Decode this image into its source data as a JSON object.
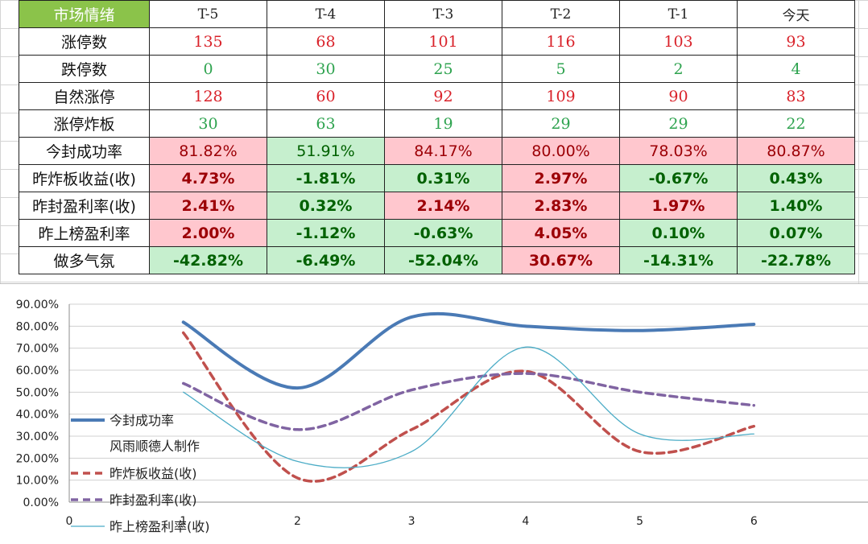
{
  "table": {
    "corner_label": "市场情绪",
    "columns": [
      "T-5",
      "T-4",
      "T-3",
      "T-2",
      "T-1",
      "今天"
    ],
    "rows": [
      {
        "label": "涨停数",
        "style": "num",
        "values": [
          "135",
          "68",
          "101",
          "116",
          "103",
          "93"
        ],
        "colors": [
          "red",
          "red",
          "red",
          "red",
          "red",
          "red"
        ]
      },
      {
        "label": "跌停数",
        "style": "num",
        "values": [
          "0",
          "30",
          "25",
          "5",
          "2",
          "4"
        ],
        "colors": [
          "green",
          "green",
          "green",
          "green",
          "green",
          "green"
        ]
      },
      {
        "label": "自然涨停",
        "style": "num",
        "values": [
          "128",
          "60",
          "92",
          "109",
          "90",
          "83"
        ],
        "colors": [
          "red",
          "red",
          "red",
          "red",
          "red",
          "red"
        ]
      },
      {
        "label": "涨停炸板",
        "style": "num",
        "values": [
          "30",
          "63",
          "19",
          "29",
          "29",
          "22"
        ],
        "colors": [
          "green",
          "green",
          "green",
          "green",
          "green",
          "green"
        ]
      },
      {
        "label": "今封成功率",
        "style": "pct",
        "bold": false,
        "values": [
          "81.82%",
          "51.91%",
          "84.17%",
          "80.00%",
          "78.03%",
          "80.87%"
        ],
        "colors": [
          "red",
          "green",
          "red",
          "red",
          "red",
          "red"
        ]
      },
      {
        "label": "昨炸板收益(收)",
        "style": "pct",
        "bold": true,
        "values": [
          "4.73%",
          "-1.81%",
          "0.31%",
          "2.97%",
          "-0.67%",
          "0.43%"
        ],
        "colors": [
          "red",
          "green",
          "green",
          "red",
          "green",
          "green"
        ]
      },
      {
        "label": "昨封盈利率(收)",
        "style": "pct",
        "bold": true,
        "values": [
          "2.41%",
          "0.32%",
          "2.14%",
          "2.83%",
          "1.97%",
          "1.40%"
        ],
        "colors": [
          "red",
          "green",
          "red",
          "red",
          "red",
          "green"
        ]
      },
      {
        "label": "昨上榜盈利率",
        "style": "pct",
        "bold": true,
        "values": [
          "2.00%",
          "-1.12%",
          "-0.63%",
          "4.05%",
          "0.10%",
          "0.07%"
        ],
        "colors": [
          "red",
          "green",
          "green",
          "red",
          "green",
          "green"
        ]
      },
      {
        "label": "做多气氛",
        "style": "pct",
        "bold": true,
        "values": [
          "-42.82%",
          "-6.49%",
          "-52.04%",
          "30.67%",
          "-14.31%",
          "-22.78%"
        ],
        "colors": [
          "green",
          "green",
          "green",
          "red",
          "green",
          "green"
        ]
      }
    ]
  },
  "chart_data": {
    "type": "line",
    "title": "",
    "xlabel": "",
    "ylabel": "",
    "x": [
      1,
      2,
      3,
      4,
      5,
      6
    ],
    "x_ticks": [
      "0",
      "1",
      "2",
      "3",
      "4",
      "5",
      "6"
    ],
    "xlim": [
      0,
      7
    ],
    "ylim": [
      0,
      90
    ],
    "y_ticks": [
      "0.00%",
      "10.00%",
      "20.00%",
      "30.00%",
      "40.00%",
      "50.00%",
      "60.00%",
      "70.00%",
      "80.00%",
      "90.00%"
    ],
    "grid": true,
    "legend_position": "bottom-left",
    "watermark": "风雨顺德人制作",
    "series": [
      {
        "name": "今封成功率",
        "values": [
          81.82,
          51.91,
          84.17,
          80.0,
          78.03,
          80.87
        ],
        "color": "#4a7ab5",
        "style": "solid-thick"
      },
      {
        "name": "昨炸板收益(收)",
        "values": [
          77,
          11,
          33,
          59.5,
          23,
          34.5
        ],
        "color": "#c0504d",
        "style": "dashed"
      },
      {
        "name": "昨封盈利率(收)",
        "values": [
          54,
          33,
          51,
          58.5,
          50,
          44
        ],
        "color": "#8064a2",
        "style": "dashed"
      },
      {
        "name": "昨上榜盈利率(收)",
        "values": [
          50,
          18.5,
          23,
          70.5,
          31,
          31
        ],
        "color": "#4bacc6",
        "style": "thin"
      }
    ]
  }
}
